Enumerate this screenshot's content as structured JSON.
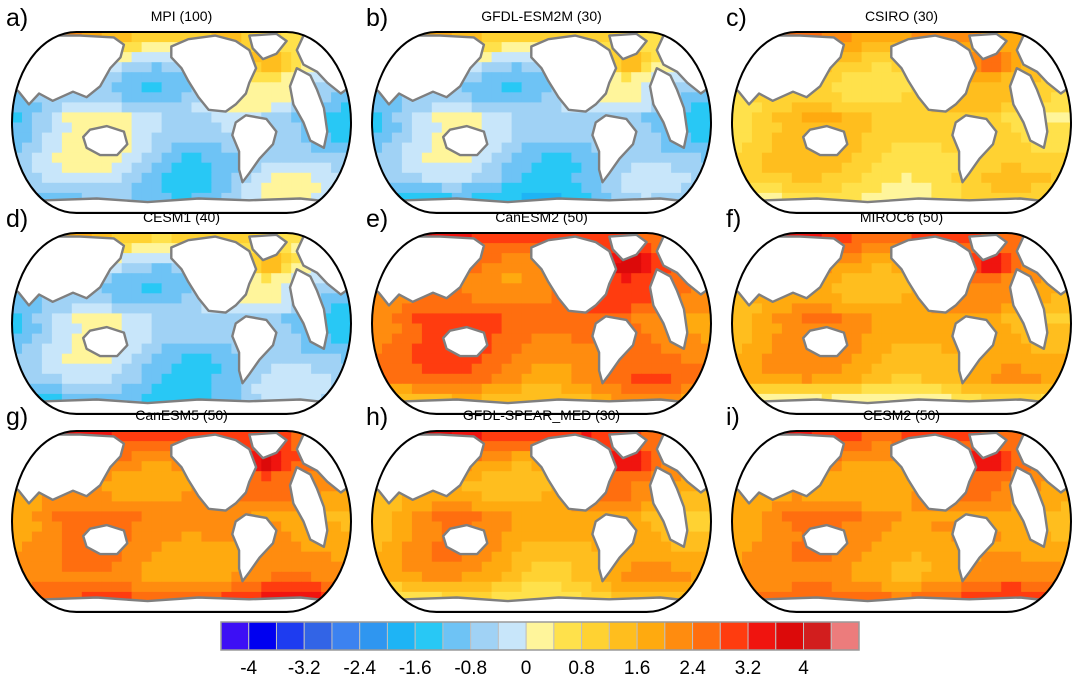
{
  "panels": [
    {
      "letter": "a)",
      "title": "MPI (100)",
      "base": -0.5,
      "amp": 0.9,
      "nh": 1.4,
      "so": -0.8
    },
    {
      "letter": "b)",
      "title": "GFDL-ESM2M (30)",
      "base": -0.6,
      "amp": 0.8,
      "nh": 1.3,
      "so": -1.6
    },
    {
      "letter": "c)",
      "title": "CSIRO (30)",
      "base": 1.0,
      "amp": 0.6,
      "nh": 2.2,
      "so": 0.3
    },
    {
      "letter": "d)",
      "title": "CESM1 (40)",
      "base": -0.6,
      "amp": 0.8,
      "nh": 1.2,
      "so": -1.2
    },
    {
      "letter": "e)",
      "title": "CanESM2 (50)",
      "base": 2.5,
      "amp": 0.6,
      "nh": 3.1,
      "so": 1.0
    },
    {
      "letter": "f)",
      "title": "MIROC6 (50)",
      "base": 1.8,
      "amp": 0.6,
      "nh": 3.0,
      "so": -0.6
    },
    {
      "letter": "g)",
      "title": "CanESM5 (50)",
      "base": 2.1,
      "amp": 0.5,
      "nh": 3.2,
      "so": 3.4
    },
    {
      "letter": "h)",
      "title": "GFDL-SPEAR_MED (30)",
      "base": 1.8,
      "amp": 0.7,
      "nh": 3.3,
      "so": 0.2
    },
    {
      "letter": "i)",
      "title": "CESM2 (50)",
      "base": 2.0,
      "amp": 0.5,
      "nh": 3.0,
      "so": 3.2
    }
  ],
  "colorbar": {
    "levels_min": -4.0,
    "levels_step": 0.4,
    "colors": [
      "#3d0ff5",
      "#0000f0",
      "#1e3cf0",
      "#3264e6",
      "#3c82f0",
      "#2f96f0",
      "#1eb4f5",
      "#28c8f5",
      "#6ec3f5",
      "#a0d2f5",
      "#c8e6fa",
      "#fff59b",
      "#ffe14b",
      "#ffd232",
      "#ffbe1e",
      "#ffaa0f",
      "#ff8c0f",
      "#ff6e0f",
      "#ff3c0f",
      "#f0140f",
      "#dc0a0a",
      "#d21e1e",
      "#ec7c7c"
    ],
    "tick_labels": [
      "-4",
      "-3.2",
      "-2.4",
      "-1.6",
      "-0.8",
      "0",
      "0.8",
      "1.6",
      "2.4",
      "3.2",
      "4"
    ]
  },
  "colors": {
    "land": "#ffffff",
    "coast": "#7f7f7f",
    "frame": "#000000"
  }
}
